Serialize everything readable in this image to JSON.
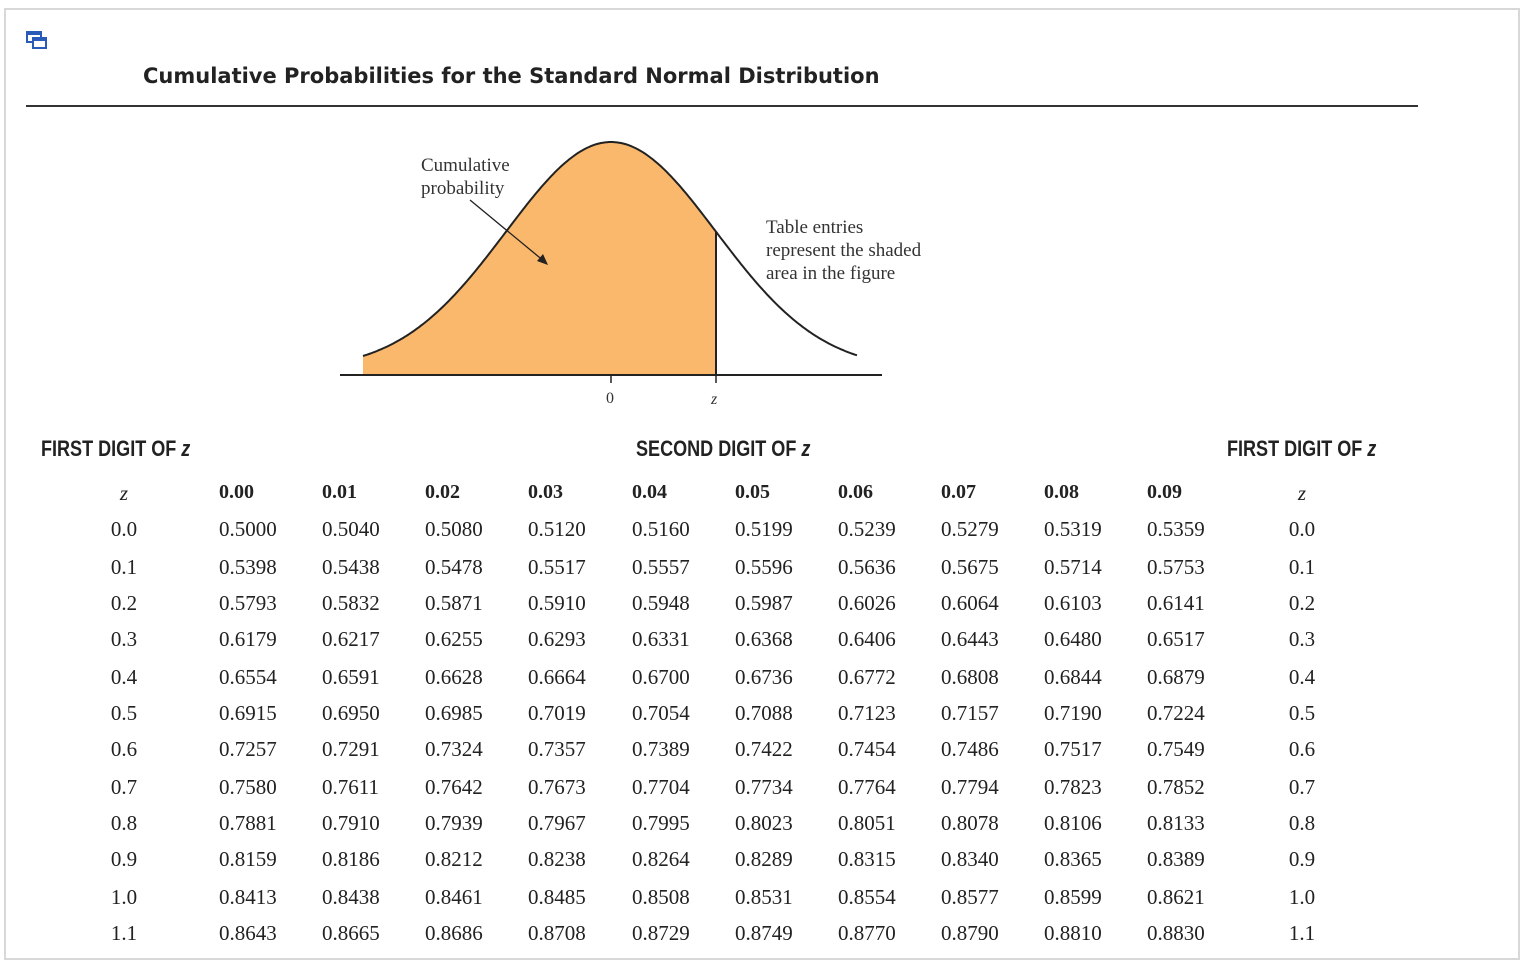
{
  "title": "Cumulative Probabilities for the Standard Normal Distribution",
  "figure": {
    "label_cumulative": "Cumulative\nprobability",
    "label_table": "Table entries\nrepresent the shaded\narea in the figure",
    "axis_zero": "0",
    "axis_z": "z",
    "fill_color": "#f9b86c"
  },
  "captions": {
    "first_digit_left": "FIRST DIGIT OF ",
    "second_digit": "SECOND DIGIT OF ",
    "first_digit_right": "FIRST DIGIT OF ",
    "z": "z"
  },
  "table": {
    "z_header": "z",
    "columns": [
      "0.00",
      "0.01",
      "0.02",
      "0.03",
      "0.04",
      "0.05",
      "0.06",
      "0.07",
      "0.08",
      "0.09"
    ],
    "rows": [
      {
        "z": "0.0",
        "values": [
          "0.5000",
          "0.5040",
          "0.5080",
          "0.5120",
          "0.5160",
          "0.5199",
          "0.5239",
          "0.5279",
          "0.5319",
          "0.5359"
        ]
      },
      {
        "z": "0.1",
        "values": [
          "0.5398",
          "0.5438",
          "0.5478",
          "0.5517",
          "0.5557",
          "0.5596",
          "0.5636",
          "0.5675",
          "0.5714",
          "0.5753"
        ]
      },
      {
        "z": "0.2",
        "values": [
          "0.5793",
          "0.5832",
          "0.5871",
          "0.5910",
          "0.5948",
          "0.5987",
          "0.6026",
          "0.6064",
          "0.6103",
          "0.6141"
        ]
      },
      {
        "z": "0.3",
        "values": [
          "0.6179",
          "0.6217",
          "0.6255",
          "0.6293",
          "0.6331",
          "0.6368",
          "0.6406",
          "0.6443",
          "0.6480",
          "0.6517"
        ]
      },
      {
        "z": "0.4",
        "values": [
          "0.6554",
          "0.6591",
          "0.6628",
          "0.6664",
          "0.6700",
          "0.6736",
          "0.6772",
          "0.6808",
          "0.6844",
          "0.6879"
        ]
      },
      {
        "z": "0.5",
        "values": [
          "0.6915",
          "0.6950",
          "0.6985",
          "0.7019",
          "0.7054",
          "0.7088",
          "0.7123",
          "0.7157",
          "0.7190",
          "0.7224"
        ]
      },
      {
        "z": "0.6",
        "values": [
          "0.7257",
          "0.7291",
          "0.7324",
          "0.7357",
          "0.7389",
          "0.7422",
          "0.7454",
          "0.7486",
          "0.7517",
          "0.7549"
        ]
      },
      {
        "z": "0.7",
        "values": [
          "0.7580",
          "0.7611",
          "0.7642",
          "0.7673",
          "0.7704",
          "0.7734",
          "0.7764",
          "0.7794",
          "0.7823",
          "0.7852"
        ]
      },
      {
        "z": "0.8",
        "values": [
          "0.7881",
          "0.7910",
          "0.7939",
          "0.7967",
          "0.7995",
          "0.8023",
          "0.8051",
          "0.8078",
          "0.8106",
          "0.8133"
        ]
      },
      {
        "z": "0.9",
        "values": [
          "0.8159",
          "0.8186",
          "0.8212",
          "0.8238",
          "0.8264",
          "0.8289",
          "0.8315",
          "0.8340",
          "0.8365",
          "0.8389"
        ]
      },
      {
        "z": "1.0",
        "values": [
          "0.8413",
          "0.8438",
          "0.8461",
          "0.8485",
          "0.8508",
          "0.8531",
          "0.8554",
          "0.8577",
          "0.8599",
          "0.8621"
        ]
      },
      {
        "z": "1.1",
        "values": [
          "0.8643",
          "0.8665",
          "0.8686",
          "0.8708",
          "0.8729",
          "0.8749",
          "0.8770",
          "0.8790",
          "0.8810",
          "0.8830"
        ]
      }
    ]
  }
}
